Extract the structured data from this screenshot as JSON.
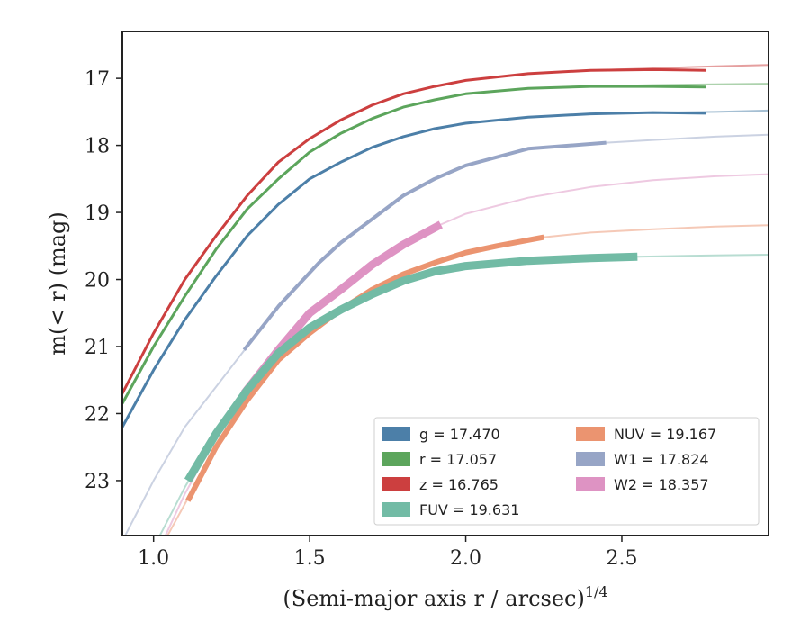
{
  "chart_data": {
    "type": "line",
    "xlabel": "(Semi-major axis r / arcsec)",
    "xlabel_superscript": "1/4",
    "ylabel": "m(< r) (mag)",
    "xlim": [
      0.9,
      2.97
    ],
    "ylim": [
      23.82,
      16.3
    ],
    "y_inverted": true,
    "xticks": [
      1.0,
      1.5,
      2.0,
      2.5
    ],
    "xtick_labels": [
      "1.0",
      "1.5",
      "2.0",
      "2.5"
    ],
    "yticks": [
      17,
      18,
      19,
      20,
      21,
      22,
      23
    ],
    "ytick_labels": [
      "17",
      "18",
      "19",
      "20",
      "21",
      "22",
      "23"
    ],
    "legend": {
      "position": "lower-right",
      "columns": 2,
      "entries": [
        {
          "name": "g",
          "label": "g = 17.470",
          "color": "#4c7fa8"
        },
        {
          "name": "r",
          "label": "r = 17.057",
          "color": "#5ca55c"
        },
        {
          "name": "z",
          "label": "z = 16.765",
          "color": "#cc3f3f"
        },
        {
          "name": "FUV",
          "label": "FUV = 19.631",
          "color": "#72bba5"
        },
        {
          "name": "NUV",
          "label": "NUV = 19.167",
          "color": "#eb9470"
        },
        {
          "name": "W1",
          "label": "W1 = 17.824",
          "color": "#97a5c6"
        },
        {
          "name": "W2",
          "label": "W2 = 18.357",
          "color": "#de93c3"
        }
      ]
    },
    "series": [
      {
        "name": "g",
        "color": "#4c7fa8",
        "model": [
          [
            0.9,
            22.2
          ],
          [
            1.0,
            21.35
          ],
          [
            1.1,
            20.6
          ],
          [
            1.2,
            19.95
          ],
          [
            1.3,
            19.35
          ],
          [
            1.4,
            18.88
          ],
          [
            1.5,
            18.5
          ],
          [
            1.6,
            18.25
          ],
          [
            1.7,
            18.03
          ],
          [
            1.8,
            17.87
          ],
          [
            1.9,
            17.75
          ],
          [
            2.0,
            17.67
          ],
          [
            2.2,
            17.58
          ],
          [
            2.4,
            17.53
          ],
          [
            2.6,
            17.51
          ],
          [
            2.8,
            17.5
          ],
          [
            2.97,
            17.48
          ]
        ],
        "data": [
          [
            0.9,
            22.2
          ],
          [
            1.0,
            21.35
          ],
          [
            1.1,
            20.6
          ],
          [
            1.2,
            19.95
          ],
          [
            1.3,
            19.35
          ],
          [
            1.4,
            18.88
          ],
          [
            1.5,
            18.5
          ],
          [
            1.6,
            18.25
          ],
          [
            1.7,
            18.03
          ],
          [
            1.8,
            17.87
          ],
          [
            1.9,
            17.75
          ],
          [
            2.0,
            17.67
          ],
          [
            2.2,
            17.58
          ],
          [
            2.4,
            17.53
          ],
          [
            2.6,
            17.51
          ],
          [
            2.77,
            17.52
          ]
        ]
      },
      {
        "name": "r",
        "color": "#5ca55c",
        "model": [
          [
            0.9,
            21.85
          ],
          [
            1.0,
            21.0
          ],
          [
            1.1,
            20.25
          ],
          [
            1.2,
            19.55
          ],
          [
            1.3,
            18.95
          ],
          [
            1.4,
            18.5
          ],
          [
            1.5,
            18.1
          ],
          [
            1.6,
            17.82
          ],
          [
            1.7,
            17.6
          ],
          [
            1.8,
            17.43
          ],
          [
            1.9,
            17.32
          ],
          [
            2.0,
            17.23
          ],
          [
            2.2,
            17.15
          ],
          [
            2.4,
            17.12
          ],
          [
            2.6,
            17.1
          ],
          [
            2.8,
            17.09
          ],
          [
            2.97,
            17.08
          ]
        ],
        "data": [
          [
            0.9,
            21.85
          ],
          [
            1.0,
            21.0
          ],
          [
            1.1,
            20.25
          ],
          [
            1.2,
            19.55
          ],
          [
            1.3,
            18.95
          ],
          [
            1.4,
            18.5
          ],
          [
            1.5,
            18.1
          ],
          [
            1.6,
            17.82
          ],
          [
            1.7,
            17.6
          ],
          [
            1.8,
            17.43
          ],
          [
            1.9,
            17.32
          ],
          [
            2.0,
            17.23
          ],
          [
            2.2,
            17.15
          ],
          [
            2.4,
            17.12
          ],
          [
            2.6,
            17.12
          ],
          [
            2.77,
            17.13
          ]
        ]
      },
      {
        "name": "z",
        "color": "#cc3f3f",
        "model": [
          [
            0.9,
            21.7
          ],
          [
            1.0,
            20.8
          ],
          [
            1.1,
            20.0
          ],
          [
            1.2,
            19.35
          ],
          [
            1.3,
            18.75
          ],
          [
            1.4,
            18.25
          ],
          [
            1.5,
            17.9
          ],
          [
            1.6,
            17.62
          ],
          [
            1.7,
            17.4
          ],
          [
            1.8,
            17.23
          ],
          [
            1.9,
            17.12
          ],
          [
            2.0,
            17.03
          ],
          [
            2.2,
            16.93
          ],
          [
            2.4,
            16.88
          ],
          [
            2.6,
            16.85
          ],
          [
            2.8,
            16.82
          ],
          [
            2.97,
            16.8
          ]
        ],
        "data": [
          [
            0.9,
            21.7
          ],
          [
            1.0,
            20.8
          ],
          [
            1.1,
            20.0
          ],
          [
            1.2,
            19.35
          ],
          [
            1.3,
            18.75
          ],
          [
            1.4,
            18.25
          ],
          [
            1.5,
            17.9
          ],
          [
            1.6,
            17.62
          ],
          [
            1.7,
            17.4
          ],
          [
            1.8,
            17.23
          ],
          [
            1.9,
            17.12
          ],
          [
            2.0,
            17.03
          ],
          [
            2.2,
            16.93
          ],
          [
            2.4,
            16.88
          ],
          [
            2.6,
            16.87
          ],
          [
            2.77,
            16.88
          ]
        ]
      },
      {
        "name": "W1",
        "color": "#97a5c6",
        "model": [
          [
            0.9,
            23.9
          ],
          [
            1.0,
            23.0
          ],
          [
            1.1,
            22.2
          ],
          [
            1.2,
            21.6
          ],
          [
            1.3,
            21.0
          ],
          [
            1.4,
            20.4
          ],
          [
            1.5,
            19.9
          ],
          [
            1.6,
            19.45
          ],
          [
            1.7,
            19.1
          ],
          [
            1.8,
            18.75
          ],
          [
            1.9,
            18.5
          ],
          [
            2.0,
            18.3
          ],
          [
            2.2,
            18.05
          ],
          [
            2.45,
            17.96
          ],
          [
            2.6,
            17.92
          ],
          [
            2.8,
            17.87
          ],
          [
            2.97,
            17.84
          ]
        ],
        "data": [
          [
            1.29,
            21.05
          ],
          [
            1.4,
            20.4
          ],
          [
            1.53,
            19.75
          ],
          [
            1.6,
            19.45
          ],
          [
            1.7,
            19.1
          ],
          [
            1.8,
            18.75
          ],
          [
            1.9,
            18.5
          ],
          [
            2.0,
            18.3
          ],
          [
            2.2,
            18.05
          ],
          [
            2.45,
            17.96
          ]
        ]
      },
      {
        "name": "W2",
        "color": "#de93c3",
        "model": [
          [
            0.9,
            25.0
          ],
          [
            1.0,
            24.2
          ],
          [
            1.1,
            23.2
          ],
          [
            1.2,
            22.35
          ],
          [
            1.3,
            21.6
          ],
          [
            1.4,
            21.0
          ],
          [
            1.5,
            20.55
          ],
          [
            1.6,
            20.15
          ],
          [
            1.7,
            19.78
          ],
          [
            1.8,
            19.48
          ],
          [
            1.92,
            19.18
          ],
          [
            2.0,
            19.02
          ],
          [
            2.2,
            18.78
          ],
          [
            2.4,
            18.62
          ],
          [
            2.6,
            18.52
          ],
          [
            2.8,
            18.46
          ],
          [
            2.97,
            18.43
          ]
        ],
        "data": [
          [
            1.29,
            21.7
          ],
          [
            1.4,
            21.05
          ],
          [
            1.5,
            20.5
          ],
          [
            1.6,
            20.15
          ],
          [
            1.7,
            19.78
          ],
          [
            1.8,
            19.48
          ],
          [
            1.92,
            19.18
          ]
        ]
      },
      {
        "name": "NUV",
        "color": "#eb9470",
        "model": [
          [
            0.9,
            25.2
          ],
          [
            1.0,
            24.2
          ],
          [
            1.1,
            23.35
          ],
          [
            1.2,
            22.5
          ],
          [
            1.3,
            21.8
          ],
          [
            1.4,
            21.2
          ],
          [
            1.5,
            20.8
          ],
          [
            1.6,
            20.45
          ],
          [
            1.7,
            20.15
          ],
          [
            1.8,
            19.92
          ],
          [
            1.9,
            19.75
          ],
          [
            2.0,
            19.6
          ],
          [
            2.1,
            19.5
          ],
          [
            2.25,
            19.37
          ],
          [
            2.4,
            19.3
          ],
          [
            2.6,
            19.25
          ],
          [
            2.8,
            19.21
          ],
          [
            2.97,
            19.19
          ]
        ],
        "data": [
          [
            1.11,
            23.3
          ],
          [
            1.2,
            22.5
          ],
          [
            1.3,
            21.8
          ],
          [
            1.4,
            21.2
          ],
          [
            1.5,
            20.8
          ],
          [
            1.6,
            20.45
          ],
          [
            1.7,
            20.15
          ],
          [
            1.8,
            19.92
          ],
          [
            1.9,
            19.75
          ],
          [
            2.0,
            19.6
          ],
          [
            2.1,
            19.5
          ],
          [
            2.25,
            19.37
          ]
        ]
      },
      {
        "name": "FUV",
        "color": "#72bba5",
        "model": [
          [
            0.9,
            25.0
          ],
          [
            1.0,
            24.0
          ],
          [
            1.1,
            23.1
          ],
          [
            1.2,
            22.3
          ],
          [
            1.3,
            21.65
          ],
          [
            1.4,
            21.1
          ],
          [
            1.5,
            20.72
          ],
          [
            1.6,
            20.45
          ],
          [
            1.7,
            20.22
          ],
          [
            1.8,
            20.02
          ],
          [
            1.9,
            19.88
          ],
          [
            2.0,
            19.8
          ],
          [
            2.2,
            19.72
          ],
          [
            2.4,
            19.68
          ],
          [
            2.55,
            19.66
          ],
          [
            2.8,
            19.64
          ],
          [
            2.97,
            19.63
          ]
        ],
        "data": [
          [
            1.11,
            23.0
          ],
          [
            1.2,
            22.3
          ],
          [
            1.3,
            21.65
          ],
          [
            1.4,
            21.1
          ],
          [
            1.5,
            20.72
          ],
          [
            1.6,
            20.45
          ],
          [
            1.7,
            20.22
          ],
          [
            1.8,
            20.02
          ],
          [
            1.9,
            19.88
          ],
          [
            2.0,
            19.8
          ],
          [
            2.2,
            19.72
          ],
          [
            2.4,
            19.68
          ],
          [
            2.55,
            19.66
          ]
        ]
      }
    ]
  }
}
